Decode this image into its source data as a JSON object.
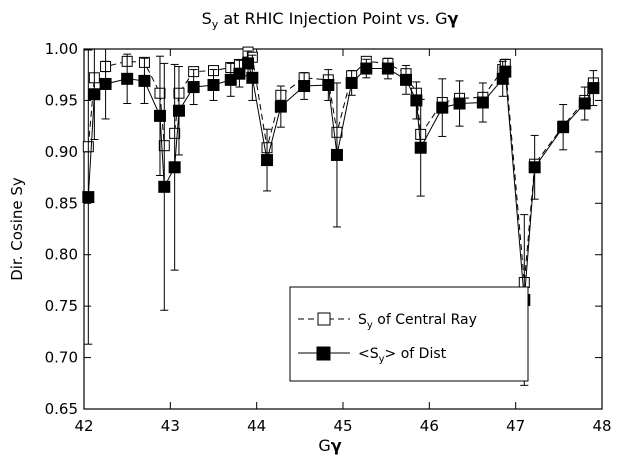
{
  "chart_data": {
    "type": "line",
    "title": {
      "main": "S",
      "sub": "y",
      "rest": " at RHIC Injection Point vs. G",
      "greek": "γ"
    },
    "xlabel": {
      "main": "G",
      "greek": "γ"
    },
    "ylabel": "Dir. Cosine Sy",
    "xlim": [
      42,
      48
    ],
    "ylim": [
      0.65,
      1.0
    ],
    "xticks": [
      42,
      43,
      44,
      45,
      46,
      47,
      48
    ],
    "xtick_labels": [
      "42",
      "43",
      "44",
      "45",
      "46",
      "47",
      "48"
    ],
    "yticks": [
      0.65,
      0.7,
      0.75,
      0.8,
      0.85,
      0.9,
      0.95,
      1.0
    ],
    "ytick_labels": [
      "0.65",
      "0.70",
      "0.75",
      "0.80",
      "0.85",
      "0.90",
      "0.95",
      "1.00"
    ],
    "grid": false,
    "legend_position": "lower-center",
    "series": [
      {
        "key": "central",
        "legend_parts": {
          "a": "S",
          "sub": "y",
          "b": " of Central Ray"
        },
        "marker": "open-square",
        "line": "dashed",
        "x": [
          42.05,
          42.12,
          42.25,
          42.5,
          42.7,
          42.88,
          42.93,
          43.05,
          43.1,
          43.27,
          43.5,
          43.7,
          43.8,
          43.9,
          43.95,
          44.12,
          44.28,
          44.55,
          44.83,
          44.93,
          45.1,
          45.27,
          45.52,
          45.73,
          45.85,
          45.9,
          46.15,
          46.35,
          46.62,
          46.85,
          46.88,
          47.1,
          47.22,
          47.55,
          47.8,
          47.9
        ],
        "y": [
          0.905,
          0.972,
          0.983,
          0.988,
          0.987,
          0.957,
          0.906,
          0.918,
          0.957,
          0.978,
          0.979,
          0.982,
          0.985,
          0.997,
          0.992,
          0.904,
          0.955,
          0.972,
          0.97,
          0.919,
          0.974,
          0.988,
          0.986,
          0.976,
          0.957,
          0.917,
          0.948,
          0.952,
          0.953,
          0.98,
          0.985,
          0.773,
          0.888,
          0.925,
          0.95,
          0.967
        ],
        "err": [
          0.0,
          0.0,
          0.005,
          0.004,
          0.004,
          0.0,
          0.0,
          0.0,
          0.0,
          0.003,
          0.003,
          0.003,
          0.002,
          0.002,
          0.003,
          0.0,
          0.0,
          0.004,
          0.004,
          0.0,
          0.004,
          0.002,
          0.003,
          0.003,
          0.0,
          0.0,
          0.0,
          0.0,
          0.0,
          0.003,
          0.003,
          0.0,
          0.0,
          0.0,
          0.0,
          0.0
        ]
      },
      {
        "key": "dist",
        "legend_parts": {
          "a": "<S",
          "sub": "y",
          "b": "> of Dist"
        },
        "marker": "filled-square",
        "line": "solid",
        "x": [
          42.05,
          42.12,
          42.25,
          42.5,
          42.7,
          42.88,
          42.93,
          43.05,
          43.1,
          43.27,
          43.5,
          43.7,
          43.8,
          43.9,
          43.95,
          44.12,
          44.28,
          44.55,
          44.83,
          44.93,
          45.1,
          45.27,
          45.52,
          45.73,
          45.85,
          45.9,
          46.15,
          46.35,
          46.62,
          46.85,
          46.88,
          47.1,
          47.22,
          47.55,
          47.8,
          47.9
        ],
        "y": [
          0.856,
          0.956,
          0.966,
          0.971,
          0.969,
          0.935,
          0.866,
          0.885,
          0.94,
          0.963,
          0.965,
          0.97,
          0.976,
          0.986,
          0.972,
          0.892,
          0.944,
          0.964,
          0.965,
          0.897,
          0.967,
          0.981,
          0.981,
          0.97,
          0.95,
          0.904,
          0.943,
          0.947,
          0.948,
          0.971,
          0.978,
          0.756,
          0.885,
          0.924,
          0.947,
          0.962
        ],
        "err": [
          0.143,
          0.044,
          0.034,
          0.024,
          0.022,
          0.058,
          0.12,
          0.1,
          0.043,
          0.017,
          0.015,
          0.016,
          0.013,
          0.012,
          0.022,
          0.03,
          0.02,
          0.013,
          0.015,
          0.07,
          0.012,
          0.009,
          0.01,
          0.014,
          0.018,
          0.047,
          0.028,
          0.022,
          0.019,
          0.017,
          0.012,
          0.083,
          0.031,
          0.022,
          0.016,
          0.017
        ]
      }
    ]
  }
}
